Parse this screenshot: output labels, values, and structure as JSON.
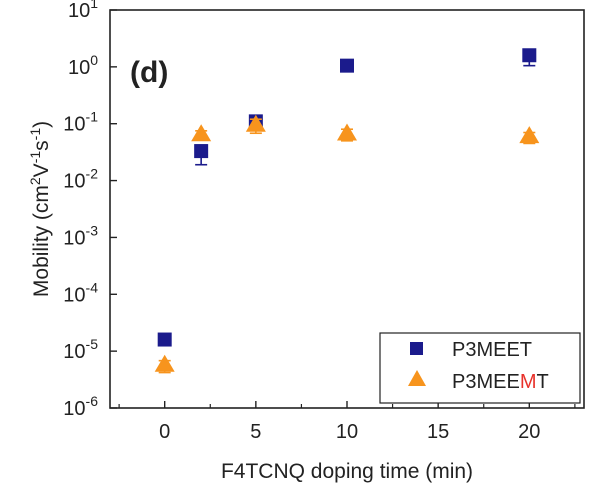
{
  "chart_data": {
    "type": "scatter",
    "panel_label": "(d)",
    "xlabel": "F4TCNQ doping time (min)",
    "ylabel": {
      "base": "Mobility (cm",
      "sup1": "2",
      "mid1": "V",
      "sup2": "-1",
      "mid2": "s",
      "sup3": "-1",
      "end": ")"
    },
    "xlim": [
      -3,
      23
    ],
    "ylim": [
      1e-06,
      10
    ],
    "yscale": "log",
    "x_ticks": [
      {
        "value": 0,
        "label": "0"
      },
      {
        "value": 5,
        "label": "5"
      },
      {
        "value": 10,
        "label": "10"
      },
      {
        "value": 15,
        "label": "15"
      },
      {
        "value": 20,
        "label": "20"
      }
    ],
    "y_ticks": [
      {
        "value": 1e-06,
        "base": "10",
        "exp": "-6"
      },
      {
        "value": 1e-05,
        "base": "10",
        "exp": "-5"
      },
      {
        "value": 0.0001,
        "base": "10",
        "exp": "-4"
      },
      {
        "value": 0.001,
        "base": "10",
        "exp": "-3"
      },
      {
        "value": 0.01,
        "base": "10",
        "exp": "-2"
      },
      {
        "value": 0.1,
        "base": "10",
        "exp": "-1"
      },
      {
        "value": 1,
        "base": "10",
        "exp": "0"
      },
      {
        "value": 10,
        "base": "10",
        "exp": "1"
      }
    ],
    "series": [
      {
        "name": "P3MEET",
        "marker": "square",
        "color": "#1b1b8c",
        "points": [
          {
            "x": 0,
            "y": 1.6e-05,
            "err_low": 1.4e-05,
            "err_high": 1.8e-05
          },
          {
            "x": 2,
            "y": 0.033,
            "err_low": 0.019,
            "err_high": 0.042
          },
          {
            "x": 5,
            "y": 0.11,
            "err_low": 0.095,
            "err_high": 0.125
          },
          {
            "x": 10,
            "y": 1.05,
            "err_low": 0.95,
            "err_high": 1.15
          },
          {
            "x": 20,
            "y": 1.6,
            "err_low": 1.05,
            "err_high": 2.0
          }
        ]
      },
      {
        "name": "P3MEEMT",
        "marker": "triangle",
        "color": "#f7941d",
        "points": [
          {
            "x": 0,
            "y": 6e-06,
            "err_low": 4.2e-06,
            "err_high": 6.8e-06
          },
          {
            "x": 2,
            "y": 0.068,
            "err_low": 0.058,
            "err_high": 0.075
          },
          {
            "x": 5,
            "y": 0.1,
            "err_low": 0.068,
            "err_high": 0.12
          },
          {
            "x": 10,
            "y": 0.07,
            "err_low": 0.05,
            "err_high": 0.08
          },
          {
            "x": 20,
            "y": 0.063,
            "err_low": 0.045,
            "err_high": 0.07
          }
        ]
      }
    ],
    "legend": {
      "placement": "bottom-right",
      "entries": [
        {
          "parts": [
            {
              "text": "P3MEET",
              "color": "#222222"
            }
          ]
        },
        {
          "parts": [
            {
              "text": "P3MEE",
              "color": "#222222"
            },
            {
              "text": "M",
              "color": "#e8322b"
            },
            {
              "text": "T",
              "color": "#222222"
            }
          ]
        }
      ]
    },
    "grid": false
  }
}
